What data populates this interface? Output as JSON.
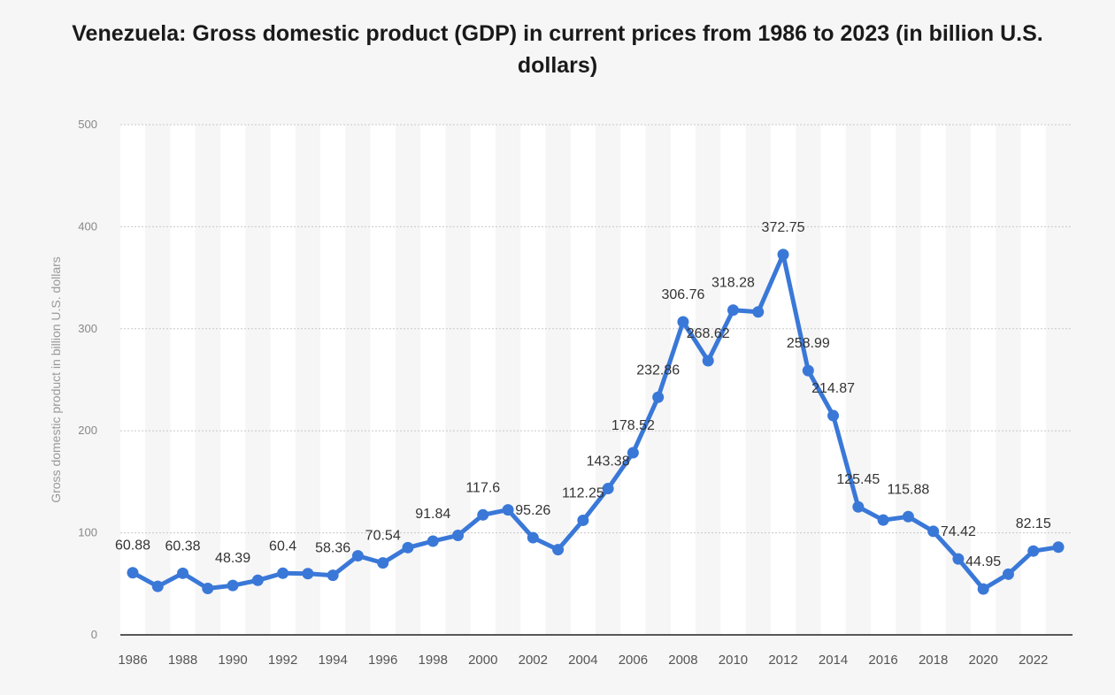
{
  "chart_data": {
    "type": "line",
    "title": "Venezuela: Gross domestic product (GDP) in current prices from 1986 to 2023 (in billion U.S. dollars)",
    "xlabel": "",
    "ylabel": "Gross domestic product in billion U.S. dollars",
    "ylim": [
      0,
      500
    ],
    "yticks": [
      0,
      100,
      200,
      300,
      400,
      500
    ],
    "x": [
      1986,
      1987,
      1988,
      1989,
      1990,
      1991,
      1992,
      1993,
      1994,
      1995,
      1996,
      1997,
      1998,
      1999,
      2000,
      2001,
      2002,
      2003,
      2004,
      2005,
      2006,
      2007,
      2008,
      2009,
      2010,
      2011,
      2012,
      2013,
      2014,
      2015,
      2016,
      2017,
      2018,
      2019,
      2020,
      2021,
      2022,
      2023
    ],
    "xtick_labels": [
      "1986",
      "1988",
      "1990",
      "1992",
      "1994",
      "1996",
      "1998",
      "2000",
      "2002",
      "2004",
      "2006",
      "2008",
      "2010",
      "2012",
      "2014",
      "2016",
      "2018",
      "2020",
      "2022"
    ],
    "series": [
      {
        "color": "#3a78d8",
        "values": [
          60.88,
          47.5,
          60.38,
          45.5,
          48.39,
          53.5,
          60.4,
          60.0,
          58.36,
          77.5,
          70.54,
          85.5,
          91.84,
          97.5,
          117.6,
          122.5,
          95.26,
          83.5,
          112.25,
          143.38,
          178.52,
          232.86,
          306.76,
          268.62,
          318.28,
          316.5,
          372.75,
          258.99,
          214.87,
          125.45,
          112.5,
          115.88,
          101.5,
          74.42,
          44.95,
          59.5,
          82.15,
          86.0
        ],
        "data_labels": [
          {
            "x": 1986,
            "text": "60.88"
          },
          {
            "x": 1988,
            "text": "60.38"
          },
          {
            "x": 1990,
            "text": "48.39"
          },
          {
            "x": 1992,
            "text": "60.4"
          },
          {
            "x": 1994,
            "text": "58.36"
          },
          {
            "x": 1996,
            "text": "70.54"
          },
          {
            "x": 1998,
            "text": "91.84"
          },
          {
            "x": 2000,
            "text": "117.6"
          },
          {
            "x": 2002,
            "text": "95.26"
          },
          {
            "x": 2004,
            "text": "112.25"
          },
          {
            "x": 2005,
            "text": "143.38"
          },
          {
            "x": 2006,
            "text": "178.52"
          },
          {
            "x": 2007,
            "text": "232.86"
          },
          {
            "x": 2008,
            "text": "306.76"
          },
          {
            "x": 2009,
            "text": "268.62"
          },
          {
            "x": 2010,
            "text": "318.28"
          },
          {
            "x": 2012,
            "text": "372.75"
          },
          {
            "x": 2013,
            "text": "258.99"
          },
          {
            "x": 2014,
            "text": "214.87"
          },
          {
            "x": 2015,
            "text": "125.45"
          },
          {
            "x": 2017,
            "text": "115.88"
          },
          {
            "x": 2019,
            "text": "74.42"
          },
          {
            "x": 2020,
            "text": "44.95"
          },
          {
            "x": 2022,
            "text": "82.15"
          }
        ]
      }
    ],
    "grid": true,
    "legend": "none"
  }
}
